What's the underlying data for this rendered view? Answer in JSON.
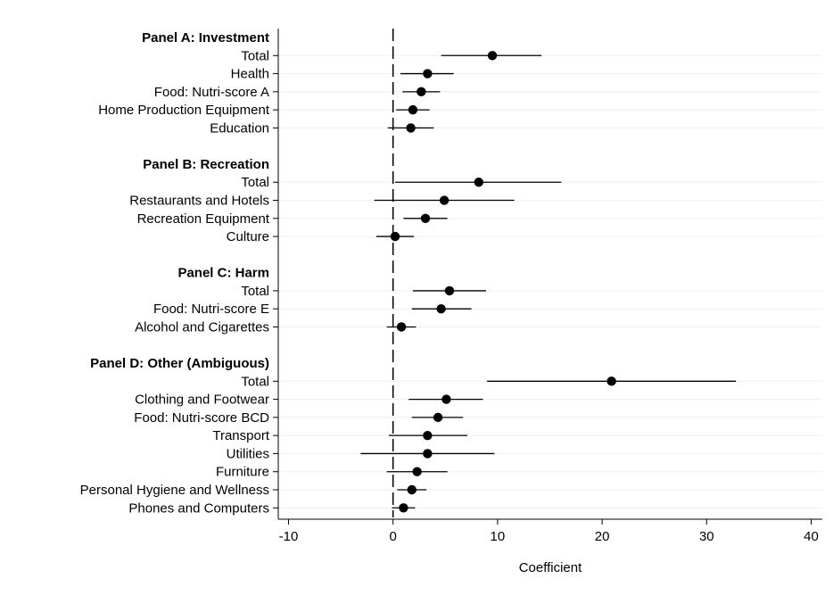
{
  "chart_data": {
    "type": "coefficient_plot",
    "xlabel": "Coefficient",
    "xlim": [
      -10,
      40
    ],
    "xticks": [
      -10,
      0,
      10,
      20,
      30,
      40
    ],
    "reference_line": 0,
    "reference_line_style": "dashed",
    "grid": "horizontal",
    "panels": [
      {
        "header": "Panel A: Investment",
        "items": [
          {
            "label": "Total",
            "coef": 9.5,
            "ci": [
              4.6,
              14.2
            ]
          },
          {
            "label": "Health",
            "coef": 3.3,
            "ci": [
              0.7,
              5.8
            ]
          },
          {
            "label": "Food: Nutri-score A",
            "coef": 2.7,
            "ci": [
              0.9,
              4.5
            ]
          },
          {
            "label": "Home Production Equipment",
            "coef": 1.9,
            "ci": [
              0.3,
              3.5
            ]
          },
          {
            "label": "Education",
            "coef": 1.7,
            "ci": [
              -0.5,
              3.9
            ]
          }
        ]
      },
      {
        "header": "Panel B: Recreation",
        "items": [
          {
            "label": "Total",
            "coef": 8.2,
            "ci": [
              0.2,
              16.1
            ]
          },
          {
            "label": "Restaurants and Hotels",
            "coef": 4.9,
            "ci": [
              -1.8,
              11.6
            ]
          },
          {
            "label": "Recreation Equipment",
            "coef": 3.1,
            "ci": [
              1.0,
              5.2
            ]
          },
          {
            "label": "Culture",
            "coef": 0.2,
            "ci": [
              -1.6,
              2.0
            ]
          }
        ]
      },
      {
        "header": "Panel C: Harm",
        "items": [
          {
            "label": "Total",
            "coef": 5.4,
            "ci": [
              1.9,
              8.9
            ]
          },
          {
            "label": "Food: Nutri-score E",
            "coef": 4.6,
            "ci": [
              1.8,
              7.5
            ]
          },
          {
            "label": "Alcohol and Cigarettes",
            "coef": 0.8,
            "ci": [
              -0.6,
              2.2
            ]
          }
        ]
      },
      {
        "header": "Panel D: Other (Ambiguous)",
        "items": [
          {
            "label": "Total",
            "coef": 20.9,
            "ci": [
              9.0,
              32.8
            ]
          },
          {
            "label": "Clothing and Footwear",
            "coef": 5.1,
            "ci": [
              1.5,
              8.6
            ]
          },
          {
            "label": "Food: Nutri-score BCD",
            "coef": 4.3,
            "ci": [
              1.8,
              6.7
            ]
          },
          {
            "label": "Transport",
            "coef": 3.3,
            "ci": [
              -0.4,
              7.1
            ]
          },
          {
            "label": "Utilities",
            "coef": 3.3,
            "ci": [
              -3.1,
              9.7
            ]
          },
          {
            "label": "Furniture",
            "coef": 2.3,
            "ci": [
              -0.6,
              5.2
            ]
          },
          {
            "label": "Personal Hygiene and Wellness",
            "coef": 1.8,
            "ci": [
              0.4,
              3.2
            ]
          },
          {
            "label": "Phones and Computers",
            "coef": 1.0,
            "ci": [
              -0.1,
              2.1
            ]
          }
        ]
      }
    ]
  }
}
